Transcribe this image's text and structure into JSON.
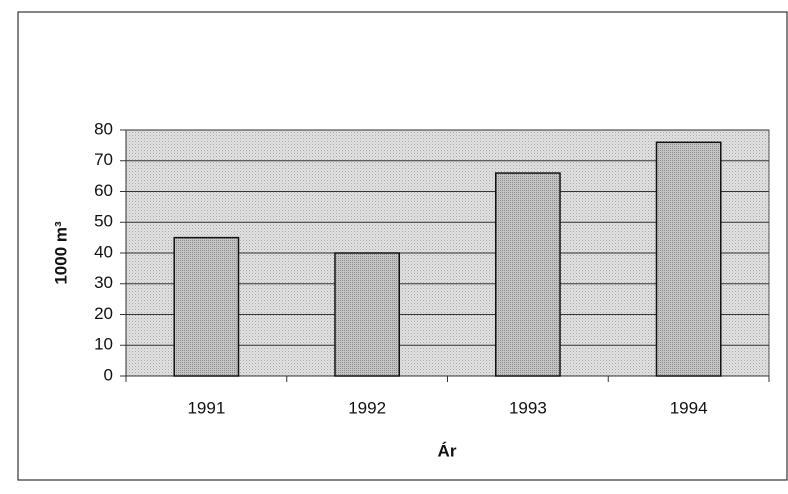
{
  "chart_data": {
    "type": "bar",
    "y_label": "1000 m³",
    "x_label": "Ár",
    "categories": [
      "1991",
      "1992",
      "1993",
      "1994"
    ],
    "values": [
      45,
      40,
      66,
      76
    ],
    "color": "#bdbdbd",
    "ylim": [
      0,
      80
    ],
    "yticks": [
      0,
      10,
      20,
      30,
      40,
      50,
      60,
      70,
      80
    ],
    "grid": true
  }
}
